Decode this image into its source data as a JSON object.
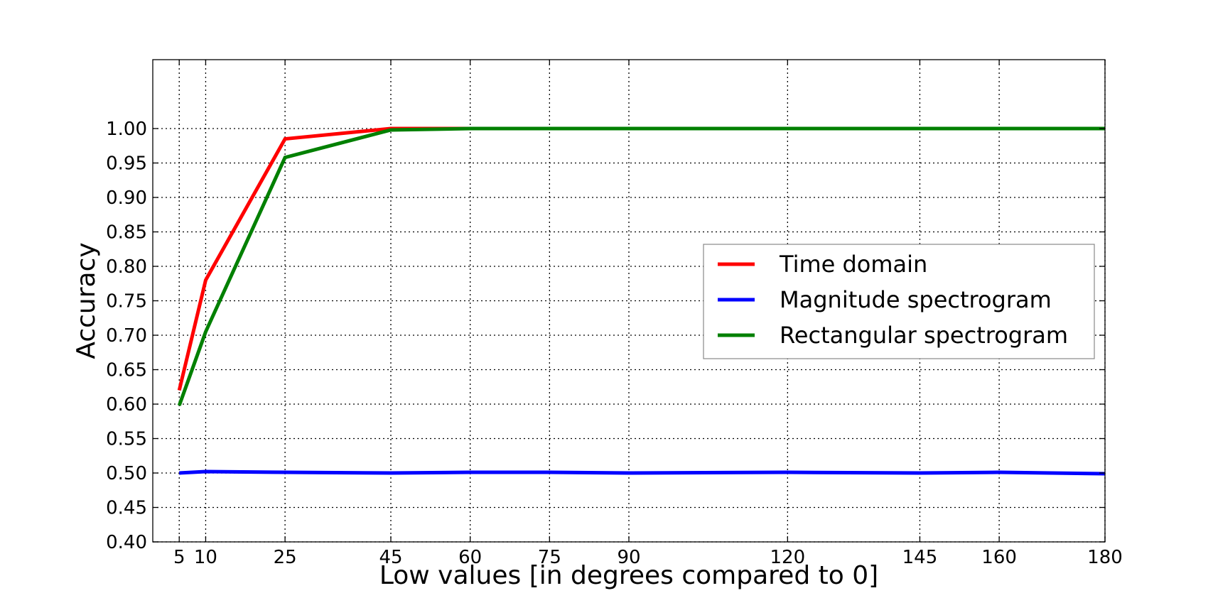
{
  "chart_data": {
    "type": "line",
    "title": "",
    "xlabel": "Low values [in degrees compared to 0]",
    "ylabel": "Accuracy",
    "x": [
      5,
      10,
      25,
      45,
      60,
      75,
      90,
      120,
      145,
      160,
      180
    ],
    "x_tick_labels": [
      "5",
      "10",
      "25",
      "45",
      "60",
      "75",
      "90",
      "120",
      "145",
      "160",
      "180"
    ],
    "y_tick_labels": [
      "0.40",
      "0.45",
      "0.50",
      "0.55",
      "0.60",
      "0.65",
      "0.70",
      "0.75",
      "0.80",
      "0.85",
      "0.90",
      "0.95",
      "1.00"
    ],
    "xlim": [
      0,
      180
    ],
    "ylim": [
      0.4,
      1.1
    ],
    "grid": true,
    "grid_style": "dotted",
    "legend_position": "center-right",
    "series": [
      {
        "name": "Time domain",
        "color": "#ff0000",
        "values": [
          0.62,
          0.78,
          0.985,
          1.0,
          1.0,
          1.0,
          1.0,
          1.0,
          1.0,
          1.0,
          1.0
        ]
      },
      {
        "name": "Magnitude spectrogram",
        "color": "#0000ff",
        "values": [
          0.5,
          0.502,
          0.501,
          0.5,
          0.501,
          0.501,
          0.5,
          0.501,
          0.5,
          0.501,
          0.499
        ]
      },
      {
        "name": "Rectangular spectrogram",
        "color": "#008000",
        "values": [
          0.598,
          0.705,
          0.958,
          0.998,
          1.0,
          1.0,
          1.0,
          1.0,
          1.0,
          1.0,
          1.0
        ]
      }
    ]
  }
}
